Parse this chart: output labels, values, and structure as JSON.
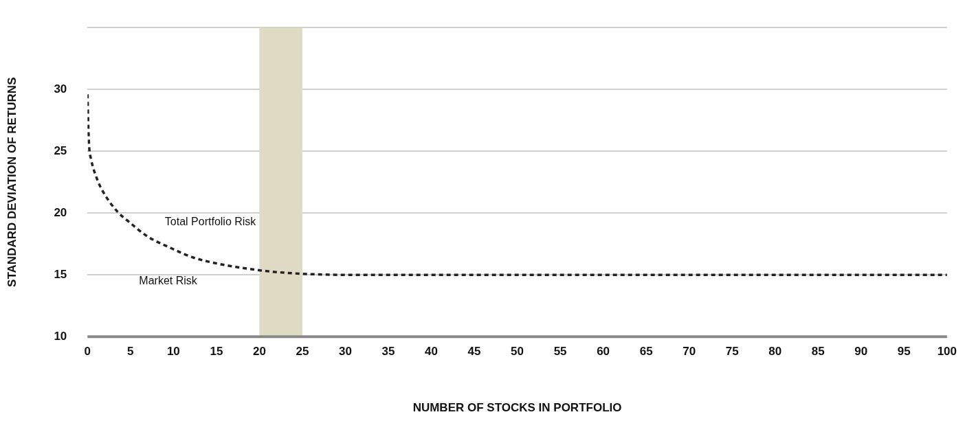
{
  "chart_data": {
    "type": "line",
    "xlabel": "NUMBER OF STOCKS IN PORTFOLIO",
    "ylabel": "STANDARD DEVIATION OF RETURNS",
    "xlim": [
      0,
      100
    ],
    "xticks": [
      0,
      5,
      10,
      15,
      20,
      25,
      30,
      35,
      40,
      45,
      50,
      55,
      60,
      65,
      70,
      75,
      80,
      85,
      90,
      95,
      100
    ],
    "ylim": [
      10,
      35
    ],
    "yticks": [
      10,
      15,
      20,
      25,
      30,
      {
        "value": 35,
        "label": null
      }
    ],
    "grid": "y",
    "legend": false,
    "marker": "none",
    "line_style": "dashed",
    "series": [
      {
        "color": "#222222",
        "x": [
          0,
          0.1,
          0.2,
          0.4,
          1.2,
          2,
          3.5,
          4.8,
          7,
          9.6,
          12.3,
          15.2,
          18.6,
          22.4,
          26.3,
          30,
          50,
          75,
          100
        ],
        "values": [
          29.6,
          26.9,
          25.3,
          24.4,
          22.6,
          21.5,
          20.1,
          19.3,
          18.1,
          17.2,
          16.4,
          15.9,
          15.5,
          15.2,
          15.05,
          15,
          15,
          15,
          15
        ]
      }
    ],
    "bands": [
      {
        "axis": "x",
        "from": 20,
        "to": 25,
        "color": "#dfdac4"
      }
    ],
    "annotations": [
      "Total Portfolio Risk",
      "Market Risk"
    ]
  }
}
